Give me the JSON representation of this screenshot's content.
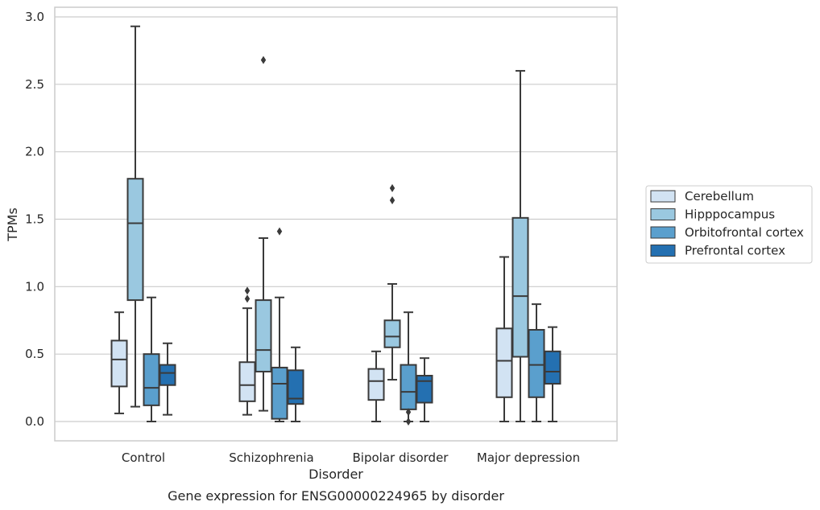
{
  "chart_data": {
    "type": "box",
    "caption": "Gene expression for ENSG00000224965 by disorder",
    "xlabel": "Disorder",
    "ylabel": "TPMs",
    "ylim": [
      -0.15,
      3.07
    ],
    "yticks": [
      "0.0",
      "0.5",
      "1.0",
      "1.5",
      "2.0",
      "2.5",
      "3.0"
    ],
    "ytick_values": [
      0,
      0.5,
      1.0,
      1.5,
      2.0,
      2.5,
      3.0
    ],
    "grid": true,
    "legend_position": "right",
    "categories": [
      "Control",
      "Schizophrenia",
      "Bipolar disorder",
      "Major depression"
    ],
    "series": [
      {
        "name": "Cerebellum",
        "color": "#d2e3f3",
        "boxes": [
          {
            "whislo": 0.06,
            "q1": 0.26,
            "med": 0.46,
            "q3": 0.6,
            "whishi": 0.81,
            "fliers": []
          },
          {
            "whislo": 0.05,
            "q1": 0.15,
            "med": 0.27,
            "q3": 0.44,
            "whishi": 0.84,
            "fliers": [
              0.91,
              0.97
            ]
          },
          {
            "whislo": 0.0,
            "q1": 0.16,
            "med": 0.3,
            "q3": 0.39,
            "whishi": 0.52,
            "fliers": []
          },
          {
            "whislo": 0.0,
            "q1": 0.18,
            "med": 0.45,
            "q3": 0.69,
            "whishi": 1.22,
            "fliers": []
          }
        ]
      },
      {
        "name": "Hipppocampus",
        "color": "#9ac8e0",
        "boxes": [
          {
            "whislo": 0.11,
            "q1": 0.9,
            "med": 1.47,
            "q3": 1.8,
            "whishi": 2.93,
            "fliers": []
          },
          {
            "whislo": 0.08,
            "q1": 0.37,
            "med": 0.53,
            "q3": 0.9,
            "whishi": 1.36,
            "fliers": [
              2.68
            ]
          },
          {
            "whislo": 0.31,
            "q1": 0.55,
            "med": 0.63,
            "q3": 0.75,
            "whishi": 1.02,
            "fliers": [
              1.64,
              1.73
            ]
          },
          {
            "whislo": 0.0,
            "q1": 0.48,
            "med": 0.93,
            "q3": 1.51,
            "whishi": 2.6,
            "fliers": []
          }
        ]
      },
      {
        "name": "Orbitofrontal cortex",
        "color": "#5a9fcd",
        "boxes": [
          {
            "whislo": 0.0,
            "q1": 0.12,
            "med": 0.25,
            "q3": 0.5,
            "whishi": 0.92,
            "fliers": []
          },
          {
            "whislo": 0.0,
            "q1": 0.02,
            "med": 0.28,
            "q3": 0.4,
            "whishi": 0.92,
            "fliers": [
              1.41
            ]
          },
          {
            "whislo": 0.0,
            "q1": 0.09,
            "med": 0.22,
            "q3": 0.42,
            "whishi": 0.81,
            "fliers": [
              0.0,
              0.07
            ]
          },
          {
            "whislo": 0.0,
            "q1": 0.18,
            "med": 0.42,
            "q3": 0.68,
            "whishi": 0.87,
            "fliers": []
          }
        ]
      },
      {
        "name": "Prefrontal cortex",
        "color": "#2470b1",
        "boxes": [
          {
            "whislo": 0.05,
            "q1": 0.27,
            "med": 0.36,
            "q3": 0.42,
            "whishi": 0.58,
            "fliers": []
          },
          {
            "whislo": 0.0,
            "q1": 0.13,
            "med": 0.17,
            "q3": 0.38,
            "whishi": 0.55,
            "fliers": []
          },
          {
            "whislo": 0.0,
            "q1": 0.14,
            "med": 0.3,
            "q3": 0.34,
            "whishi": 0.47,
            "fliers": []
          },
          {
            "whislo": 0.0,
            "q1": 0.28,
            "med": 0.37,
            "q3": 0.52,
            "whishi": 0.7,
            "fliers": []
          }
        ]
      }
    ]
  }
}
